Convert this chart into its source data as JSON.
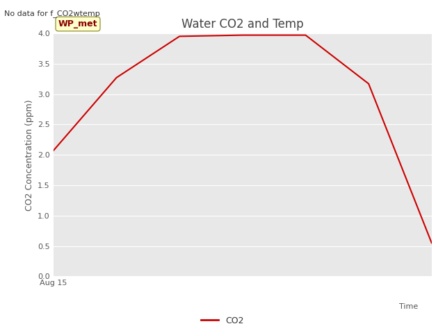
{
  "title": "Water CO2 and Temp",
  "no_data_text": "No data for f_CO2wtemp",
  "ylabel": "CO2 Concentration (ppm)",
  "ylim": [
    0.0,
    4.0
  ],
  "yticks": [
    0.0,
    0.5,
    1.0,
    1.5,
    2.0,
    2.5,
    3.0,
    3.5,
    4.0
  ],
  "co2_x": [
    0,
    1,
    2,
    3,
    4,
    5,
    6
  ],
  "co2_y": [
    2.07,
    3.27,
    3.95,
    3.97,
    3.97,
    3.17,
    0.55
  ],
  "co2_color": "#cc0000",
  "line_width": 1.5,
  "legend_label": "CO2",
  "wp_met_box_text": "WP_met",
  "wp_met_box_facecolor": "#ffffcc",
  "wp_met_box_edgecolor": "#999944",
  "wp_met_text_color": "#880000",
  "figure_bg_color": "#ffffff",
  "plot_bg_color": "#e8e8e8",
  "grid_color": "#ffffff",
  "title_fontsize": 12,
  "axis_label_fontsize": 9,
  "tick_fontsize": 8,
  "no_data_fontsize": 8,
  "wp_met_fontsize": 9,
  "legend_fontsize": 9
}
